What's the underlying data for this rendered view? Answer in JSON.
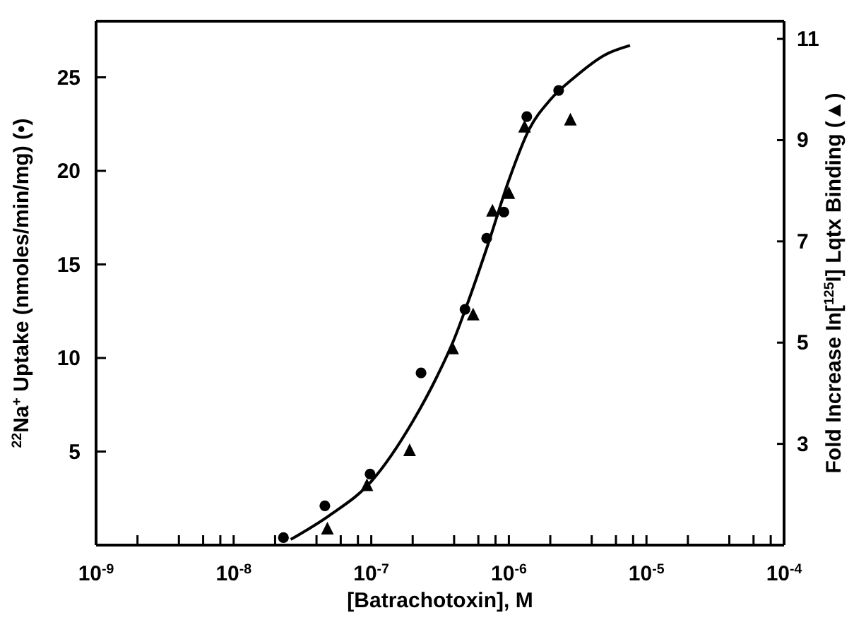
{
  "chart_data": {
    "type": "scatter",
    "xlabel": "[Batrachotoxin], M",
    "ylabel": "$^{22}$Na$^{+}$ Uptake (nmoles/min/mg) (•)",
    "y2label": "Fold Increase In[$^{125}$I] Lqtx Binding (▲)",
    "log": "x",
    "grid": false,
    "legend": false,
    "xlim": [
      1e-09,
      0.0001
    ],
    "xticks": [
      {
        "value": 1e-09,
        "label": "10$^{-9}$"
      },
      {
        "value": 2e-09,
        "label": null
      },
      {
        "value": 4e-09,
        "label": null
      },
      {
        "value": 6e-09,
        "label": null
      },
      {
        "value": 8e-09,
        "label": null
      },
      {
        "value": 1e-08,
        "label": "10$^{-8}$"
      },
      {
        "value": 2e-08,
        "label": null
      },
      {
        "value": 4e-08,
        "label": null
      },
      {
        "value": 6e-08,
        "label": null
      },
      {
        "value": 8e-08,
        "label": null
      },
      {
        "value": 1e-07,
        "label": "10$^{-7}$"
      },
      {
        "value": 2e-07,
        "label": null
      },
      {
        "value": 4e-07,
        "label": null
      },
      {
        "value": 6e-07,
        "label": null
      },
      {
        "value": 8e-07,
        "label": null
      },
      {
        "value": 1e-06,
        "label": "10$^{-6}$"
      },
      {
        "value": 2e-06,
        "label": null
      },
      {
        "value": 4e-06,
        "label": null
      },
      {
        "value": 6e-06,
        "label": null
      },
      {
        "value": 8e-06,
        "label": null
      },
      {
        "value": 1e-05,
        "label": "10$^{-5}$"
      },
      {
        "value": 2e-05,
        "label": null
      },
      {
        "value": 4e-05,
        "label": null
      },
      {
        "value": 6e-05,
        "label": null
      },
      {
        "value": 8e-05,
        "label": null
      },
      {
        "value": 0.0001,
        "label": "10$^{-4}$"
      }
    ],
    "ylim": [
      0,
      28
    ],
    "yticks": [
      5,
      10,
      15,
      20,
      25
    ],
    "y2lim": [
      1,
      11.35
    ],
    "y2ticks": [
      3,
      5,
      7,
      9,
      11
    ],
    "series": [
      {
        "marker": "circle",
        "color": "#000000",
        "x": [
          2.3e-08,
          4.6e-08,
          9.8e-08,
          2.3e-07,
          4.8e-07,
          6.9e-07,
          9.2e-07,
          1.35e-06,
          2.3e-06
        ],
        "values": [
          0.4,
          2.1,
          3.8,
          9.2,
          12.6,
          16.4,
          17.8,
          22.9,
          24.3
        ]
      },
      {
        "marker": "triangle",
        "axis": "y2",
        "color": "#000000",
        "x": [
          4.8e-08,
          9.3e-08,
          1.9e-07,
          3.9e-07,
          5.5e-07,
          7.6e-07,
          1e-06,
          1.3e-06,
          2.8e-06
        ],
        "values": [
          1.32,
          2.18,
          2.87,
          4.88,
          5.55,
          7.6,
          7.95,
          9.26,
          9.4
        ]
      },
      {
        "type": "line",
        "marker": "none",
        "line_style": "solid",
        "color": "#000000",
        "x": [
          2.6e-08,
          5e-08,
          1e-07,
          2e-07,
          3e-07,
          4e-07,
          5e-07,
          7e-07,
          1e-06,
          1.4e-06,
          2e-06,
          3e-06,
          5e-06,
          7.6e-06
        ],
        "values": [
          0.3,
          1.6,
          3.4,
          6.6,
          9,
          11,
          12.9,
          16,
          19.5,
          22.2,
          23.8,
          25,
          26.2,
          26.7
        ]
      }
    ]
  }
}
